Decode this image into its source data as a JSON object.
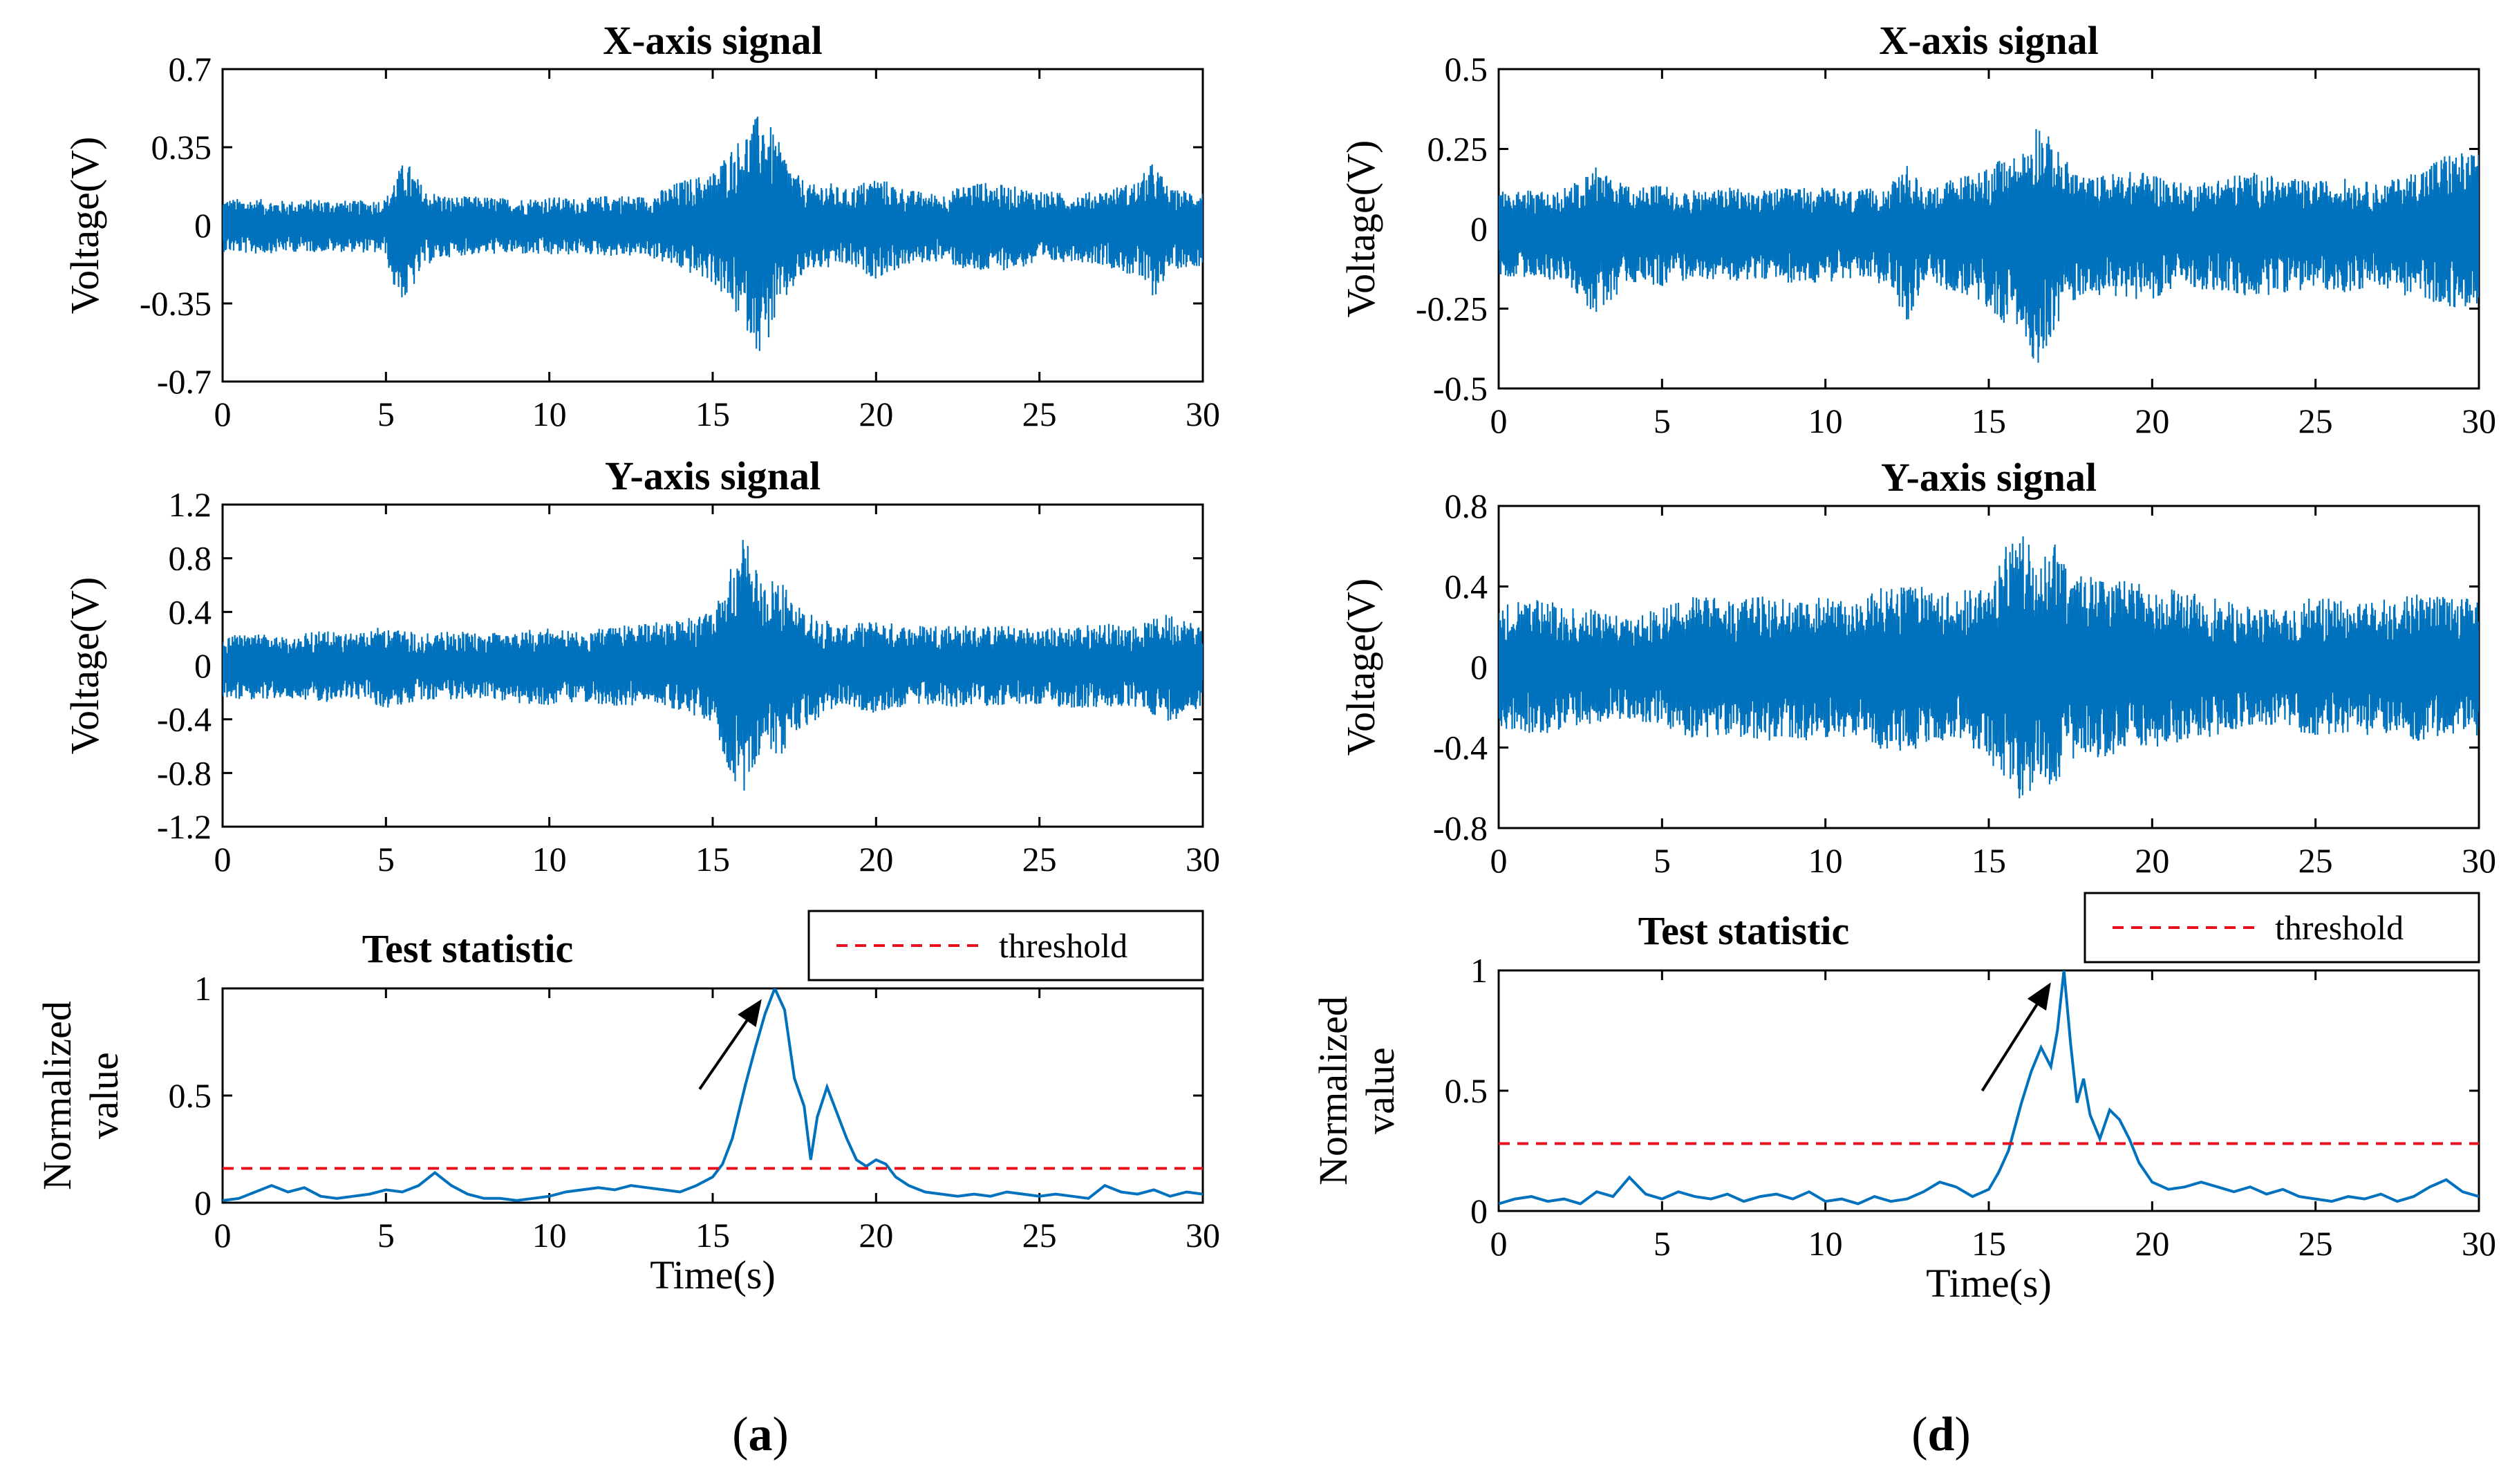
{
  "figure": {
    "panel_labels": [
      {
        "prefix": "(",
        "letter": "a",
        "suffix": ")"
      },
      {
        "prefix": "(",
        "letter": "d",
        "suffix": ")"
      }
    ]
  },
  "chart_data": [
    {
      "type": "line",
      "panel": "a",
      "title": "X-axis signal",
      "xlabel": "",
      "ylabel": "Voltage(V)",
      "xlim": [
        0,
        30
      ],
      "ylim": [
        -0.7,
        0.7
      ],
      "xticks": [
        "0",
        "5",
        "10",
        "15",
        "20",
        "25",
        "30"
      ],
      "yticks": [
        "0.7",
        "0.35",
        "0",
        "-0.35",
        "-0.7"
      ],
      "color": "#0072BD",
      "envelope": {
        "x": [
          0,
          1,
          2,
          3,
          4,
          5,
          5.2,
          5.6,
          6.2,
          7,
          8,
          9,
          10,
          11,
          12,
          13,
          14,
          15,
          15.5,
          16,
          16.5,
          17,
          17.5,
          18,
          18.5,
          19,
          20,
          21,
          22,
          23,
          24,
          25,
          26,
          27,
          28,
          28.5,
          29,
          30
        ],
        "upper": [
          0.12,
          0.12,
          0.11,
          0.12,
          0.11,
          0.12,
          0.2,
          0.3,
          0.16,
          0.13,
          0.13,
          0.12,
          0.13,
          0.12,
          0.14,
          0.13,
          0.2,
          0.24,
          0.34,
          0.42,
          0.52,
          0.38,
          0.24,
          0.18,
          0.2,
          0.16,
          0.22,
          0.16,
          0.14,
          0.2,
          0.18,
          0.16,
          0.14,
          0.16,
          0.2,
          0.29,
          0.16,
          0.16
        ],
        "lower": [
          -0.12,
          -0.13,
          -0.12,
          -0.12,
          -0.12,
          -0.13,
          -0.28,
          -0.35,
          -0.18,
          -0.14,
          -0.13,
          -0.13,
          -0.14,
          -0.13,
          -0.14,
          -0.14,
          -0.2,
          -0.26,
          -0.36,
          -0.46,
          -0.6,
          -0.4,
          -0.28,
          -0.2,
          -0.2,
          -0.18,
          -0.24,
          -0.18,
          -0.16,
          -0.22,
          -0.2,
          -0.18,
          -0.16,
          -0.18,
          -0.24,
          -0.33,
          -0.2,
          -0.18
        ]
      }
    },
    {
      "type": "line",
      "panel": "a",
      "title": "Y-axis signal",
      "xlabel": "",
      "ylabel": "Voltage(V)",
      "xlim": [
        0,
        30
      ],
      "ylim": [
        -1.2,
        1.2
      ],
      "xticks": [
        "0",
        "5",
        "10",
        "15",
        "20",
        "25",
        "30"
      ],
      "yticks": [
        "1.2",
        "0.8",
        "0.4",
        "0",
        "-0.4",
        "-0.8",
        "-1.2"
      ],
      "color": "#0072BD",
      "envelope": {
        "x": [
          0,
          1,
          2,
          3,
          4,
          5,
          6,
          7,
          8,
          9,
          10,
          11,
          12,
          13,
          14,
          15,
          15.5,
          16,
          16.5,
          17,
          17.5,
          18,
          18.5,
          19,
          20,
          21,
          22,
          23,
          24,
          25,
          26,
          27,
          28,
          29,
          30
        ],
        "upper": [
          0.22,
          0.24,
          0.22,
          0.26,
          0.24,
          0.3,
          0.24,
          0.26,
          0.24,
          0.26,
          0.28,
          0.26,
          0.3,
          0.32,
          0.34,
          0.4,
          0.7,
          1.0,
          0.6,
          0.7,
          0.46,
          0.4,
          0.34,
          0.3,
          0.34,
          0.3,
          0.32,
          0.3,
          0.3,
          0.28,
          0.3,
          0.32,
          0.3,
          0.4,
          0.3
        ],
        "lower": [
          -0.24,
          -0.26,
          -0.24,
          -0.28,
          -0.24,
          -0.32,
          -0.26,
          -0.26,
          -0.24,
          -0.28,
          -0.3,
          -0.28,
          -0.3,
          -0.3,
          -0.34,
          -0.42,
          -0.8,
          -1.0,
          -0.6,
          -0.76,
          -0.5,
          -0.44,
          -0.36,
          -0.3,
          -0.36,
          -0.3,
          -0.32,
          -0.3,
          -0.3,
          -0.3,
          -0.32,
          -0.32,
          -0.32,
          -0.42,
          -0.3
        ]
      }
    },
    {
      "type": "line",
      "panel": "a",
      "title": "Test statistic",
      "xlabel": "Time(s)",
      "ylabel_lines": [
        "Normalized",
        "value"
      ],
      "xlim": [
        0,
        30
      ],
      "ylim": [
        0,
        1
      ],
      "xticks": [
        "0",
        "5",
        "10",
        "15",
        "20",
        "25",
        "30"
      ],
      "yticks": [
        "1",
        "0.5",
        "0"
      ],
      "legend": {
        "label": "threshold",
        "position": "top-right"
      },
      "threshold": 0.16,
      "annotation": {
        "type": "arrow",
        "from": [
          14.6,
          0.53
        ],
        "to": [
          16.5,
          0.95
        ]
      },
      "series": [
        {
          "name": "",
          "color": "#0072BD",
          "x": [
            0,
            0.5,
            1,
            1.5,
            2,
            2.5,
            3,
            3.5,
            4,
            4.5,
            5,
            5.5,
            6,
            6.5,
            7,
            7.5,
            8,
            8.5,
            9,
            9.5,
            10,
            10.5,
            11,
            11.5,
            12,
            12.5,
            13,
            13.5,
            14,
            14.5,
            15,
            15.3,
            15.6,
            16,
            16.3,
            16.6,
            16.9,
            17.2,
            17.5,
            17.8,
            18,
            18.2,
            18.5,
            18.8,
            19.1,
            19.4,
            19.7,
            20,
            20.3,
            20.6,
            21,
            21.5,
            22,
            22.5,
            23,
            23.5,
            24,
            24.5,
            25,
            25.5,
            26,
            26.5,
            27,
            27.5,
            28,
            28.5,
            29,
            29.5,
            30
          ],
          "y": [
            0.01,
            0.02,
            0.05,
            0.08,
            0.05,
            0.07,
            0.03,
            0.02,
            0.03,
            0.04,
            0.06,
            0.05,
            0.08,
            0.14,
            0.08,
            0.04,
            0.02,
            0.02,
            0.01,
            0.02,
            0.03,
            0.05,
            0.06,
            0.07,
            0.06,
            0.08,
            0.07,
            0.06,
            0.05,
            0.08,
            0.12,
            0.18,
            0.3,
            0.55,
            0.72,
            0.88,
            1.0,
            0.9,
            0.58,
            0.45,
            0.2,
            0.4,
            0.54,
            0.42,
            0.3,
            0.2,
            0.17,
            0.2,
            0.18,
            0.12,
            0.08,
            0.05,
            0.04,
            0.03,
            0.04,
            0.03,
            0.05,
            0.04,
            0.03,
            0.04,
            0.03,
            0.02,
            0.08,
            0.05,
            0.04,
            0.06,
            0.03,
            0.05,
            0.04
          ]
        }
      ]
    },
    {
      "type": "line",
      "panel": "d",
      "title": "X-axis signal",
      "xlabel": "",
      "ylabel": "Voltage(V)",
      "xlim": [
        0,
        30
      ],
      "ylim": [
        -0.5,
        0.5
      ],
      "xticks": [
        "0",
        "5",
        "10",
        "15",
        "20",
        "25",
        "30"
      ],
      "yticks": [
        "0.5",
        "0.25",
        "0",
        "-0.25",
        "-0.5"
      ],
      "color": "#0072BD",
      "envelope": {
        "x": [
          0,
          1,
          2,
          3,
          4,
          5,
          6,
          7,
          8,
          9,
          10,
          11,
          12,
          12.5,
          13,
          14,
          15,
          15.5,
          16,
          16.5,
          17,
          17.5,
          18,
          19,
          20,
          21,
          22,
          23,
          24,
          25,
          26,
          27,
          28,
          29,
          30
        ],
        "upper": [
          0.12,
          0.12,
          0.13,
          0.2,
          0.13,
          0.14,
          0.12,
          0.13,
          0.12,
          0.13,
          0.13,
          0.12,
          0.14,
          0.2,
          0.13,
          0.16,
          0.2,
          0.22,
          0.24,
          0.35,
          0.26,
          0.2,
          0.16,
          0.18,
          0.18,
          0.14,
          0.16,
          0.18,
          0.16,
          0.15,
          0.16,
          0.14,
          0.18,
          0.24,
          0.24
        ],
        "lower": [
          -0.15,
          -0.16,
          -0.16,
          -0.28,
          -0.17,
          -0.18,
          -0.16,
          -0.17,
          -0.16,
          -0.17,
          -0.17,
          -0.16,
          -0.18,
          -0.3,
          -0.17,
          -0.2,
          -0.26,
          -0.3,
          -0.32,
          -0.44,
          -0.32,
          -0.24,
          -0.2,
          -0.22,
          -0.22,
          -0.18,
          -0.2,
          -0.22,
          -0.2,
          -0.19,
          -0.2,
          -0.18,
          -0.22,
          -0.24,
          -0.28
        ]
      }
    },
    {
      "type": "line",
      "panel": "d",
      "title": "Y-axis signal",
      "xlabel": "",
      "ylabel": "Voltage(V)",
      "xlim": [
        0,
        30
      ],
      "ylim": [
        -0.8,
        0.8
      ],
      "xticks": [
        "0",
        "5",
        "10",
        "15",
        "20",
        "25",
        "30"
      ],
      "yticks": [
        "0.8",
        "0.4",
        "0",
        "-0.4",
        "-0.8"
      ],
      "color": "#0072BD",
      "envelope": {
        "x": [
          0,
          1,
          2,
          3,
          4,
          5,
          6,
          7,
          8,
          9,
          10,
          11,
          12,
          13,
          14,
          15,
          15.5,
          16,
          16.5,
          17,
          17.5,
          18,
          19,
          20,
          21,
          22,
          23,
          24,
          25,
          26,
          27,
          28,
          29,
          30
        ],
        "upper": [
          0.3,
          0.34,
          0.32,
          0.28,
          0.24,
          0.3,
          0.36,
          0.34,
          0.36,
          0.34,
          0.36,
          0.34,
          0.42,
          0.4,
          0.36,
          0.44,
          0.6,
          0.66,
          0.56,
          0.62,
          0.44,
          0.46,
          0.44,
          0.4,
          0.38,
          0.34,
          0.3,
          0.28,
          0.36,
          0.32,
          0.34,
          0.38,
          0.36,
          0.34
        ],
        "lower": [
          -0.3,
          -0.34,
          -0.32,
          -0.28,
          -0.26,
          -0.3,
          -0.36,
          -0.34,
          -0.38,
          -0.36,
          -0.38,
          -0.34,
          -0.44,
          -0.4,
          -0.36,
          -0.46,
          -0.62,
          -0.68,
          -0.56,
          -0.6,
          -0.46,
          -0.46,
          -0.44,
          -0.42,
          -0.38,
          -0.34,
          -0.3,
          -0.28,
          -0.36,
          -0.34,
          -0.36,
          -0.38,
          -0.36,
          -0.34
        ]
      }
    },
    {
      "type": "line",
      "panel": "d",
      "title": "Test statistic",
      "xlabel": "Time(s)",
      "ylabel_lines": [
        "Normalized",
        "value"
      ],
      "xlim": [
        0,
        30
      ],
      "ylim": [
        0,
        1
      ],
      "xticks": [
        "0",
        "5",
        "10",
        "15",
        "20",
        "25",
        "30"
      ],
      "yticks": [
        "1",
        "0.5",
        "0"
      ],
      "legend": {
        "label": "threshold",
        "position": "top-right"
      },
      "threshold": 0.28,
      "annotation": {
        "type": "arrow",
        "from": [
          14.8,
          0.5
        ],
        "to": [
          16.9,
          0.95
        ]
      },
      "series": [
        {
          "name": "",
          "color": "#0072BD",
          "x": [
            0,
            0.5,
            1,
            1.5,
            2,
            2.5,
            3,
            3.5,
            4,
            4.5,
            5,
            5.5,
            6,
            6.5,
            7,
            7.5,
            8,
            8.5,
            9,
            9.5,
            10,
            10.5,
            11,
            11.5,
            12,
            12.5,
            13,
            13.5,
            14,
            14.5,
            15,
            15.3,
            15.6,
            16,
            16.3,
            16.6,
            16.9,
            17.1,
            17.3,
            17.5,
            17.7,
            17.9,
            18.1,
            18.4,
            18.7,
            19,
            19.3,
            19.6,
            20,
            20.5,
            21,
            21.5,
            22,
            22.5,
            23,
            23.5,
            24,
            24.5,
            25,
            25.5,
            26,
            26.5,
            27,
            27.5,
            28,
            28.5,
            29,
            29.5,
            30
          ],
          "y": [
            0.03,
            0.05,
            0.06,
            0.04,
            0.05,
            0.03,
            0.08,
            0.06,
            0.14,
            0.07,
            0.05,
            0.08,
            0.06,
            0.05,
            0.07,
            0.04,
            0.06,
            0.07,
            0.05,
            0.08,
            0.04,
            0.05,
            0.03,
            0.06,
            0.04,
            0.05,
            0.08,
            0.12,
            0.1,
            0.06,
            0.09,
            0.16,
            0.25,
            0.45,
            0.58,
            0.68,
            0.6,
            0.75,
            1.0,
            0.7,
            0.45,
            0.55,
            0.4,
            0.3,
            0.42,
            0.38,
            0.3,
            0.2,
            0.12,
            0.09,
            0.1,
            0.12,
            0.1,
            0.08,
            0.1,
            0.07,
            0.09,
            0.06,
            0.05,
            0.04,
            0.06,
            0.05,
            0.07,
            0.04,
            0.06,
            0.1,
            0.13,
            0.08,
            0.06
          ]
        }
      ]
    }
  ]
}
